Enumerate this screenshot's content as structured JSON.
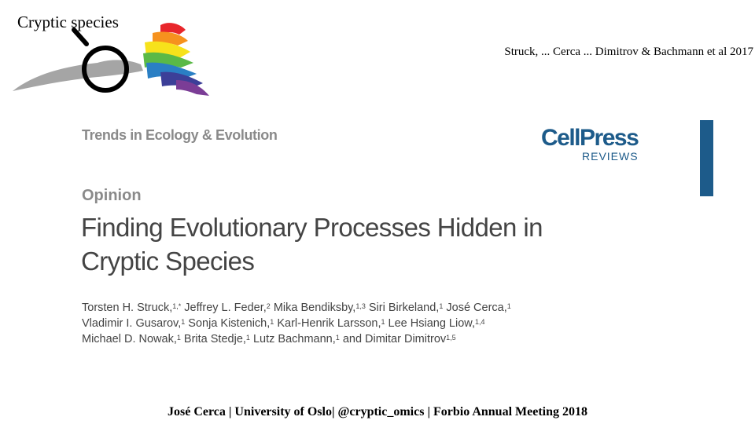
{
  "slide": {
    "title": "Cryptic species",
    "citation": "Struck, ... Cerca ... Dimitrov & Bachmann et al 2017",
    "footer": "José Cerca | University of Oslo| @cryptic_omics | Forbio Annual Meeting 2018"
  },
  "logo": {
    "icon": "magnifier-over-rainbow-animals-icon",
    "colors": [
      "#e8262b",
      "#f6921e",
      "#f7e21b",
      "#5ab947",
      "#2a7fc4",
      "#3c3f98",
      "#7b3d96",
      "#a0a0a0"
    ]
  },
  "paper": {
    "journal": "Trends in Ecology & Evolution",
    "publisher": {
      "name": "CellPress",
      "sub": "REVIEWS",
      "color": "#1d5b8a"
    },
    "article_type": "Opinion",
    "title_lines": [
      "Finding Evolutionary Processes Hidden in",
      "Cryptic Species"
    ],
    "authors": [
      [
        {
          "name": "Torsten H. Struck,",
          "sup": "1,*"
        },
        {
          "name": " Jeffrey L. Feder,",
          "sup": "2"
        },
        {
          "name": " Mika Bendiksby,",
          "sup": "1,3"
        },
        {
          "name": " Siri Birkeland,",
          "sup": "1"
        },
        {
          "name": " José Cerca,",
          "sup": "1"
        }
      ],
      [
        {
          "name": "Vladimir I. Gusarov,",
          "sup": "1"
        },
        {
          "name": " Sonja Kistenich,",
          "sup": "1"
        },
        {
          "name": " Karl-Henrik Larsson,",
          "sup": "1"
        },
        {
          "name": " Lee Hsiang Liow,",
          "sup": "1,4"
        }
      ],
      [
        {
          "name": "Michael D. Nowak,",
          "sup": "1"
        },
        {
          "name": " Brita Stedje,",
          "sup": "1"
        },
        {
          "name": " Lutz Bachmann,",
          "sup": "1"
        },
        {
          "name": " and Dimitar Dimitrov",
          "sup": "1,5"
        }
      ]
    ]
  }
}
